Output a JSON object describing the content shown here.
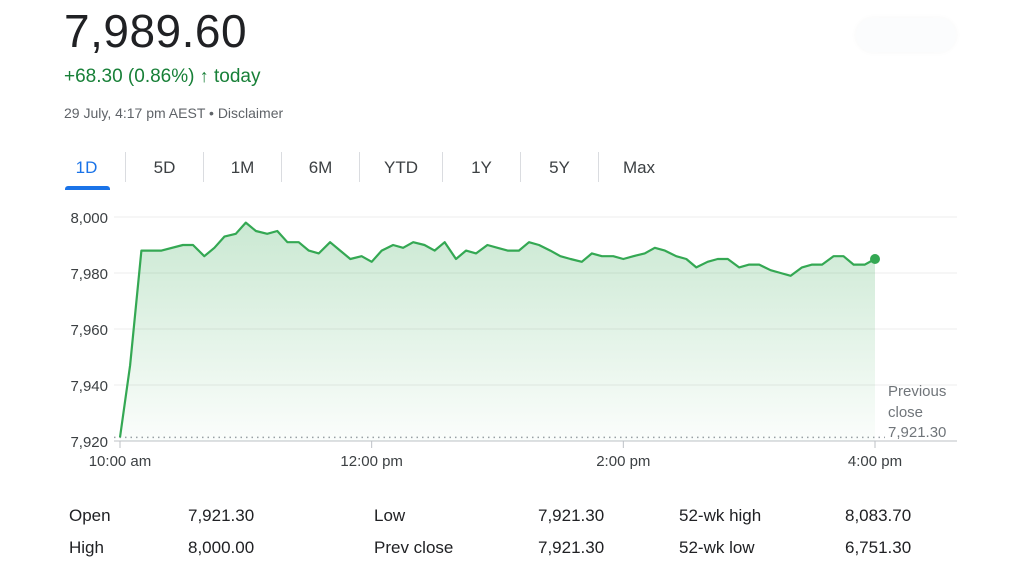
{
  "quote": {
    "price": "7,989.60",
    "change_text": "+68.30 (0.86%)",
    "change_arrow": "↑",
    "change_period": "today",
    "timestamp": "29 July, 4:17 pm AEST",
    "separator": "•",
    "disclaimer_label": "Disclaimer",
    "up_color": "#188038"
  },
  "range_tabs": [
    {
      "label": "1D",
      "active": true
    },
    {
      "label": "5D",
      "active": false
    },
    {
      "label": "1M",
      "active": false
    },
    {
      "label": "6M",
      "active": false
    },
    {
      "label": "YTD",
      "active": false
    },
    {
      "label": "1Y",
      "active": false
    },
    {
      "label": "5Y",
      "active": false
    },
    {
      "label": "Max",
      "active": false
    }
  ],
  "chart_data": {
    "type": "area",
    "x_tick_labels": [
      "10:00 am",
      "12:00 pm",
      "2:00 pm",
      "4:00 pm"
    ],
    "x_range_hours": [
      10,
      16.25
    ],
    "y_tick_labels": [
      "8,000",
      "7,980",
      "7,960",
      "7,940",
      "7,920"
    ],
    "ylim": [
      7920,
      8000
    ],
    "grid": true,
    "line_color": "#34a853",
    "previous_close": {
      "label_line1": "Previous",
      "label_line2": "close",
      "value": 7921.3,
      "value_label": "7,921.30"
    },
    "series": [
      {
        "x": [
          10.0,
          10.08,
          10.17,
          10.33,
          10.5,
          10.58,
          10.67,
          10.75,
          10.83,
          10.92,
          11.0,
          11.08,
          11.17,
          11.25,
          11.33,
          11.42,
          11.5,
          11.58,
          11.67,
          11.75,
          11.83,
          11.92,
          12.0,
          12.08,
          12.17,
          12.25,
          12.33,
          12.42,
          12.5,
          12.58,
          12.67,
          12.75,
          12.83,
          12.92,
          13.0,
          13.08,
          13.17,
          13.25,
          13.33,
          13.42,
          13.5,
          13.58,
          13.67,
          13.75,
          13.83,
          13.92,
          14.0,
          14.08,
          14.17,
          14.25,
          14.33,
          14.42,
          14.5,
          14.58,
          14.67,
          14.75,
          14.83,
          14.92,
          15.0,
          15.08,
          15.17,
          15.25,
          15.33,
          15.42,
          15.5,
          15.58,
          15.67,
          15.75,
          15.83,
          15.92,
          16.0
        ],
        "y": [
          7921.3,
          7947,
          7988,
          7988,
          7990,
          7990,
          7986,
          7989,
          7993,
          7994,
          7998,
          7995,
          7994,
          7995,
          7991,
          7991,
          7988,
          7987,
          7991,
          7988,
          7985,
          7986,
          7984,
          7988,
          7990,
          7989,
          7991,
          7990,
          7988,
          7991,
          7985,
          7988,
          7987,
          7990,
          7989,
          7988,
          7988,
          7991,
          7990,
          7988,
          7986,
          7985,
          7984,
          7987,
          7986,
          7986,
          7985,
          7986,
          7987,
          7989,
          7988,
          7986,
          7985,
          7982,
          7984,
          7985,
          7985,
          7982,
          7983,
          7983,
          7981,
          7980,
          7979,
          7982,
          7983,
          7983,
          7986,
          7986,
          7983,
          7983,
          7985
        ]
      }
    ]
  },
  "stats": {
    "open_label": "Open",
    "open_value": "7,921.30",
    "high_label": "High",
    "high_value": "8,000.00",
    "low_label": "Low",
    "low_value": "7,921.30",
    "prev_close_label": "Prev close",
    "prev_close_value": "7,921.30",
    "wk52_high_label": "52-wk high",
    "wk52_high_value": "8,083.70",
    "wk52_low_label": "52-wk low",
    "wk52_low_value": "6,751.30"
  }
}
